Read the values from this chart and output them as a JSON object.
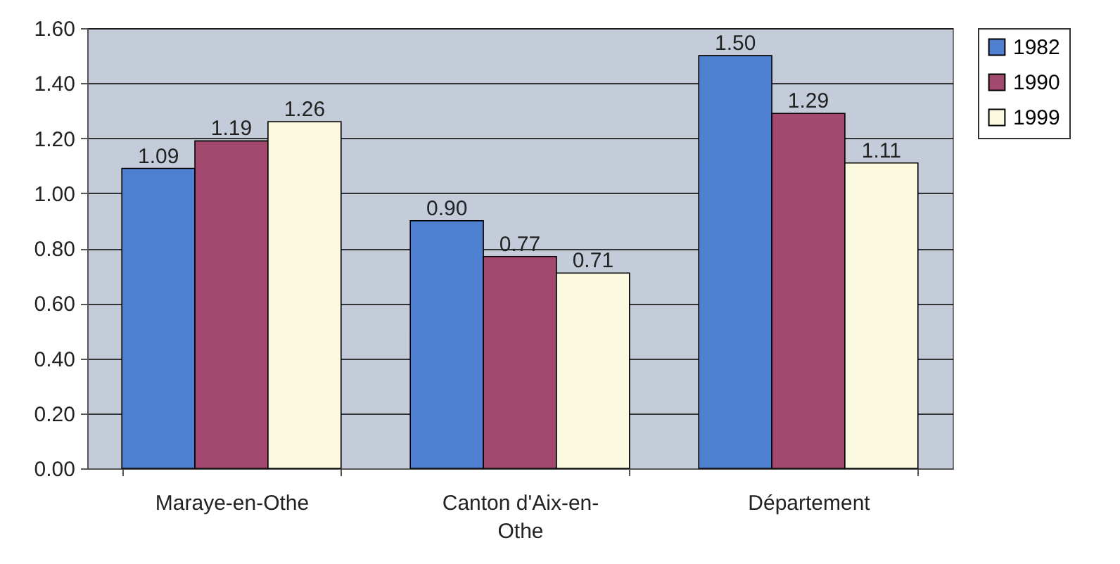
{
  "chart_data": {
    "type": "bar",
    "categories": [
      "Maraye-en-Othe",
      "Canton d'Aix-en-Othe",
      "Département"
    ],
    "series": [
      {
        "name": "1982",
        "color": "#4f7fcf",
        "values": [
          1.09,
          0.9,
          1.5
        ],
        "value_labels": [
          "1.09",
          "0.90",
          "1.50"
        ]
      },
      {
        "name": "1990",
        "color": "#a3496f",
        "values": [
          1.19,
          0.77,
          1.29
        ],
        "value_labels": [
          "1.19",
          "0.77",
          "1.29"
        ]
      },
      {
        "name": "1999",
        "color": "#fbf9df",
        "values": [
          1.26,
          0.71,
          1.11
        ],
        "value_labels": [
          "1.26",
          "0.71",
          "1.11"
        ]
      }
    ],
    "ylim": [
      0,
      1.6
    ],
    "yticks": [
      {
        "value": 0,
        "label": "0.00"
      },
      {
        "value": 0.2,
        "label": "0.20"
      },
      {
        "value": 0.4,
        "label": "0.40"
      },
      {
        "value": 0.6,
        "label": "0.60"
      },
      {
        "value": 0.8,
        "label": "0.80"
      },
      {
        "value": 1,
        "label": "1.00"
      },
      {
        "value": 1.2,
        "label": "1.20"
      },
      {
        "value": 1.4,
        "label": "1.40"
      },
      {
        "value": 1.6,
        "label": "1.60"
      }
    ],
    "grid": "y",
    "legend": "right"
  }
}
